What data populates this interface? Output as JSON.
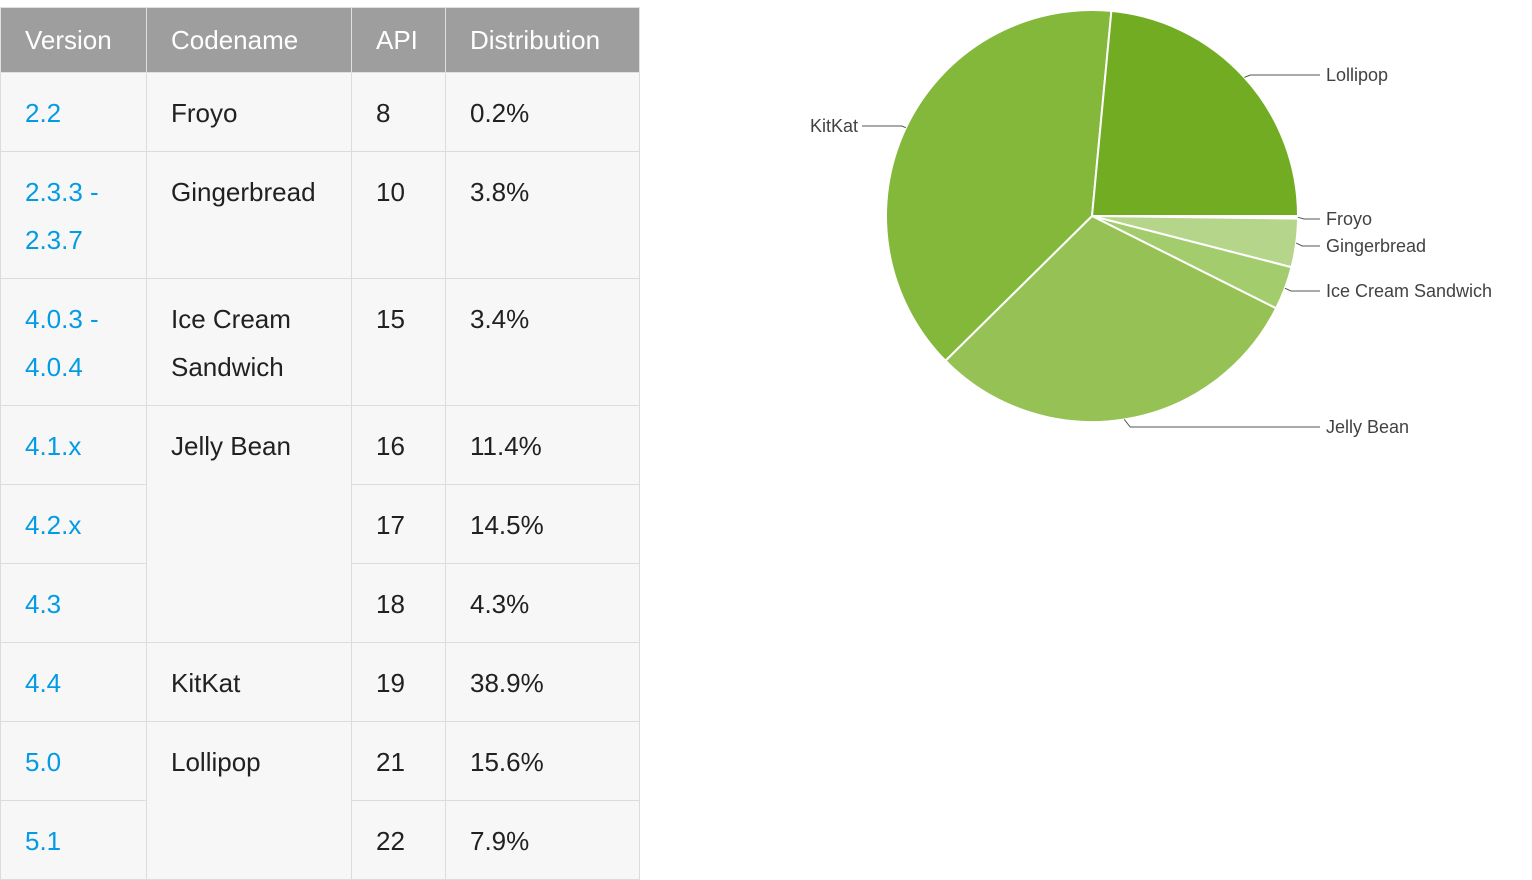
{
  "table": {
    "headers": {
      "version": "Version",
      "codename": "Codename",
      "api": "API",
      "distribution": "Distribution"
    },
    "rows": [
      {
        "version": "2.2",
        "version2": "",
        "codename": "Froyo",
        "codename2": "",
        "api": "8",
        "distribution": "0.2%"
      },
      {
        "version": "2.3.3 -",
        "version2": "2.3.7",
        "codename": "Gingerbread",
        "codename2": "",
        "api": "10",
        "distribution": "3.8%"
      },
      {
        "version": "4.0.3 -",
        "version2": "4.0.4",
        "codename": "Ice Cream",
        "codename2": "Sandwich",
        "api": "15",
        "distribution": "3.4%"
      },
      {
        "version": "4.1.x",
        "version2": "",
        "codename": "Jelly Bean",
        "codename2": "",
        "api": "16",
        "distribution": "11.4%"
      },
      {
        "version": "4.2.x",
        "version2": "",
        "codename": "",
        "codename2": "",
        "api": "17",
        "distribution": "14.5%"
      },
      {
        "version": "4.3",
        "version2": "",
        "codename": "",
        "codename2": "",
        "api": "18",
        "distribution": "4.3%"
      },
      {
        "version": "4.4",
        "version2": "",
        "codename": "KitKat",
        "codename2": "",
        "api": "19",
        "distribution": "38.9%"
      },
      {
        "version": "5.0",
        "version2": "",
        "codename": "Lollipop",
        "codename2": "",
        "api": "21",
        "distribution": "15.6%"
      },
      {
        "version": "5.1",
        "version2": "",
        "codename": "",
        "codename2": "",
        "api": "22",
        "distribution": "7.9%"
      }
    ]
  },
  "chart_data": {
    "type": "pie",
    "categories": [
      "Froyo",
      "Gingerbread",
      "Ice Cream Sandwich",
      "Jelly Bean",
      "KitKat",
      "Lollipop"
    ],
    "values": [
      0.2,
      3.8,
      3.4,
      30.2,
      38.9,
      23.5
    ],
    "colors": [
      "#ffffff",
      "#b5d58a",
      "#a3cc6c",
      "#96c154",
      "#83b83a",
      "#71ac23"
    ],
    "start_angle_deg": 0,
    "direction": "clockwise-from-right",
    "legend": "labels-with-leader-lines"
  }
}
